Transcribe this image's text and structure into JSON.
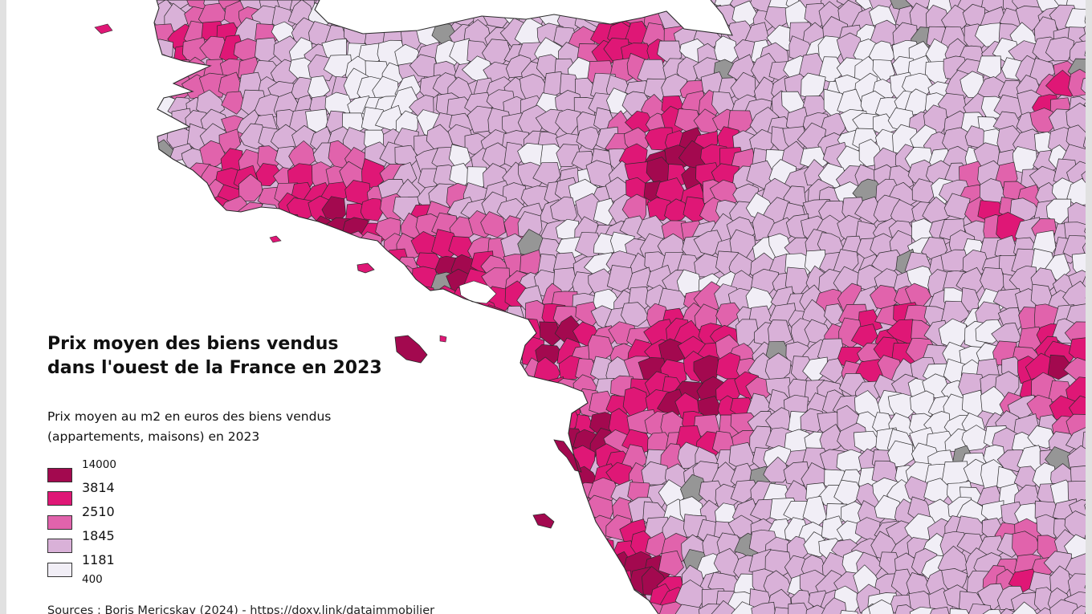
{
  "map": {
    "title_line1": "Prix moyen des biens vendus",
    "title_line2": "dans l'ouest de la France en 2023",
    "subtitle_line1": "Prix moyen au m2 en euros des biens vendus",
    "subtitle_line2": "(appartements, maisons) en 2023",
    "sources": "Sources : Boris Mericskay (2024) - https://doxy.link/dataimmobilier"
  },
  "legend": {
    "bounds": [
      "14000",
      "3814",
      "2510",
      "1845",
      "1181",
      "400"
    ],
    "classes": [
      {
        "color": "#a3094f",
        "range": "3814 - 14000"
      },
      {
        "color": "#df1776",
        "range": "2510 - 3814"
      },
      {
        "color": "#e163ac",
        "range": "1845 - 2510"
      },
      {
        "color": "#d9b1d8",
        "range": "1181 - 1845"
      },
      {
        "color": "#f1eef6",
        "range": "400 - 1181"
      }
    ],
    "no_data_color": "#969696"
  },
  "colors": {
    "sea": "#ffffff",
    "commune_border": "#2b2b2b",
    "frame": "#e1e1e1"
  }
}
